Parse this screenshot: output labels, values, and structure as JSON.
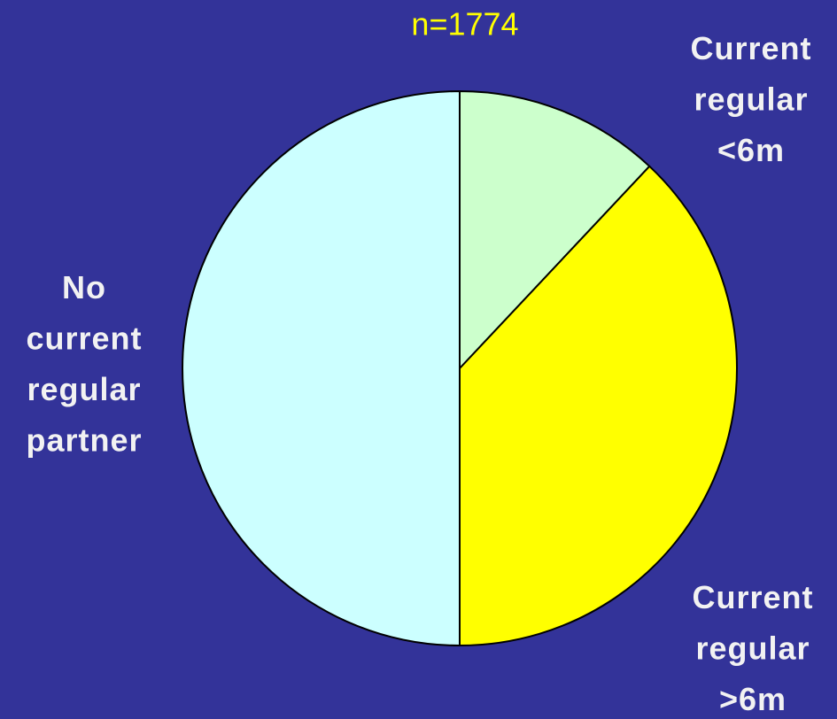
{
  "chart_data": {
    "type": "pie",
    "title": "n=1774",
    "categories": [
      "Current regular <6m",
      "Current regular >6m",
      "No current regular partner"
    ],
    "values": [
      12,
      38,
      50
    ],
    "colors": [
      "#ccffcc",
      "#ffff00",
      "#ccffff"
    ]
  }
}
